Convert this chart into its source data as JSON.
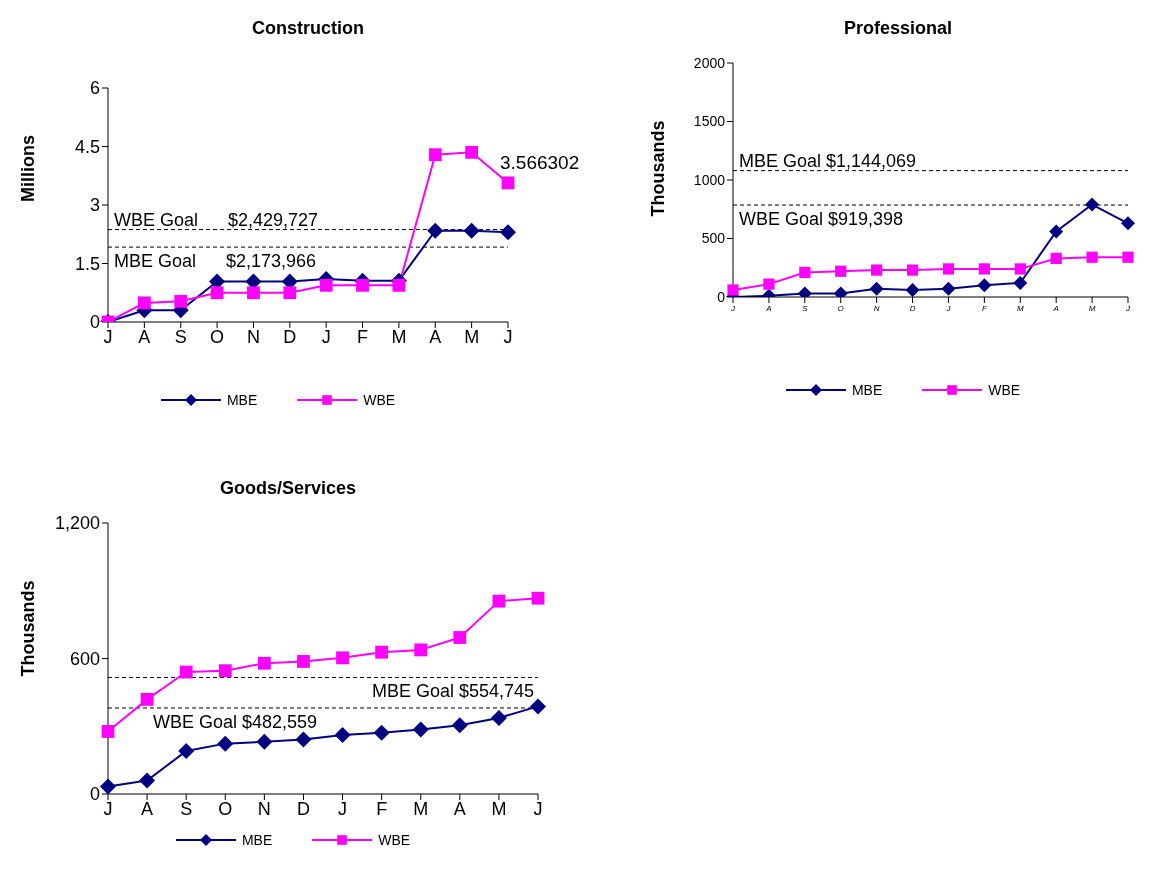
{
  "chart_data": [
    {
      "type": "line",
      "title": "Construction",
      "ylabel": "Millions",
      "categories": [
        "J",
        "A",
        "S",
        "O",
        "N",
        "D",
        "J",
        "F",
        "M",
        "A",
        "M",
        "J"
      ],
      "ylim": [
        0,
        6
      ],
      "yticks": [
        0,
        1.5,
        3,
        4.5,
        6
      ],
      "grid": false,
      "legend": "bottom",
      "series": [
        {
          "name": "MBE",
          "color": "#000080",
          "marker": "diamond",
          "values": [
            0,
            0.3,
            0.3,
            1.04,
            1.04,
            1.04,
            1.1,
            1.06,
            1.06,
            2.34,
            2.34,
            2.3
          ]
        },
        {
          "name": "WBE",
          "color": "#ff00ff",
          "marker": "square",
          "values": [
            0,
            0.49,
            0.53,
            0.75,
            0.75,
            0.75,
            0.94,
            0.94,
            0.94,
            4.29,
            4.35,
            3.566302
          ],
          "value_labels": [
            null,
            null,
            null,
            null,
            null,
            null,
            null,
            null,
            null,
            null,
            null,
            "3.566302"
          ]
        }
      ],
      "ref_lines": [
        {
          "axis": "y",
          "value": 2.37,
          "label": "WBE Goal      $2,429,727",
          "line_style": "dashed",
          "color": "#000000"
        },
        {
          "axis": "y",
          "value": 1.92,
          "label": "MBE Goal      $2,173,966",
          "line_style": "dashed",
          "color": "#000000"
        }
      ]
    },
    {
      "type": "line",
      "title": "Professional",
      "ylabel": "Thousands",
      "categories": [
        "J",
        "A",
        "S",
        "O",
        "N",
        "D",
        "J",
        "F",
        "M",
        "A",
        "M",
        "J"
      ],
      "ylim": [
        0,
        2000
      ],
      "yticks": [
        0,
        500,
        1000,
        1500,
        2000
      ],
      "grid": false,
      "legend": "bottom",
      "series": [
        {
          "name": "MBE",
          "color": "#000080",
          "marker": "diamond",
          "values": [
            0,
            10,
            30,
            30,
            70,
            60,
            70,
            100,
            120,
            560,
            790,
            630
          ]
        },
        {
          "name": "WBE",
          "color": "#ff00ff",
          "marker": "square",
          "values": [
            60,
            110,
            210,
            220,
            230,
            230,
            240,
            240,
            240,
            330,
            340,
            340
          ]
        }
      ],
      "ref_lines": [
        {
          "axis": "y",
          "value": 1080,
          "label": "MBE Goal $1,144,069",
          "line_style": "dashed",
          "color": "#000000"
        },
        {
          "axis": "y",
          "value": 786,
          "label": "WBE Goal $919,398",
          "line_style": "dashed",
          "color": "#000000"
        }
      ]
    },
    {
      "type": "line",
      "title": "Goods/Services",
      "ylabel": "Thousands",
      "categories": [
        "J",
        "A",
        "S",
        "O",
        "N",
        "D",
        "J",
        "F",
        "M",
        "A",
        "M",
        "J"
      ],
      "ylim": [
        0,
        1200
      ],
      "yticks": [
        0,
        600,
        {
          "value": 1200,
          "label": "1,200"
        }
      ],
      "grid": false,
      "legend": "bottom",
      "series": [
        {
          "name": "MBE",
          "color": "#000080",
          "marker": "diamond",
          "values": [
            33,
            60,
            190,
            223,
            231,
            241,
            261,
            271,
            286,
            304,
            337,
            388
          ]
        },
        {
          "name": "WBE",
          "color": "#ff00ff",
          "marker": "square",
          "values": [
            277,
            419,
            540,
            546,
            579,
            587,
            603,
            628,
            638,
            693,
            854,
            867
          ]
        }
      ],
      "ref_lines": [
        {
          "axis": "y",
          "value": 516,
          "label": "MBE Goal $554,745",
          "line_style": "dashed",
          "color": "#000000"
        },
        {
          "axis": "y",
          "value": 381,
          "label": "WBE Goal $482,559",
          "line_style": "dashed",
          "color": "#000000"
        }
      ]
    }
  ]
}
